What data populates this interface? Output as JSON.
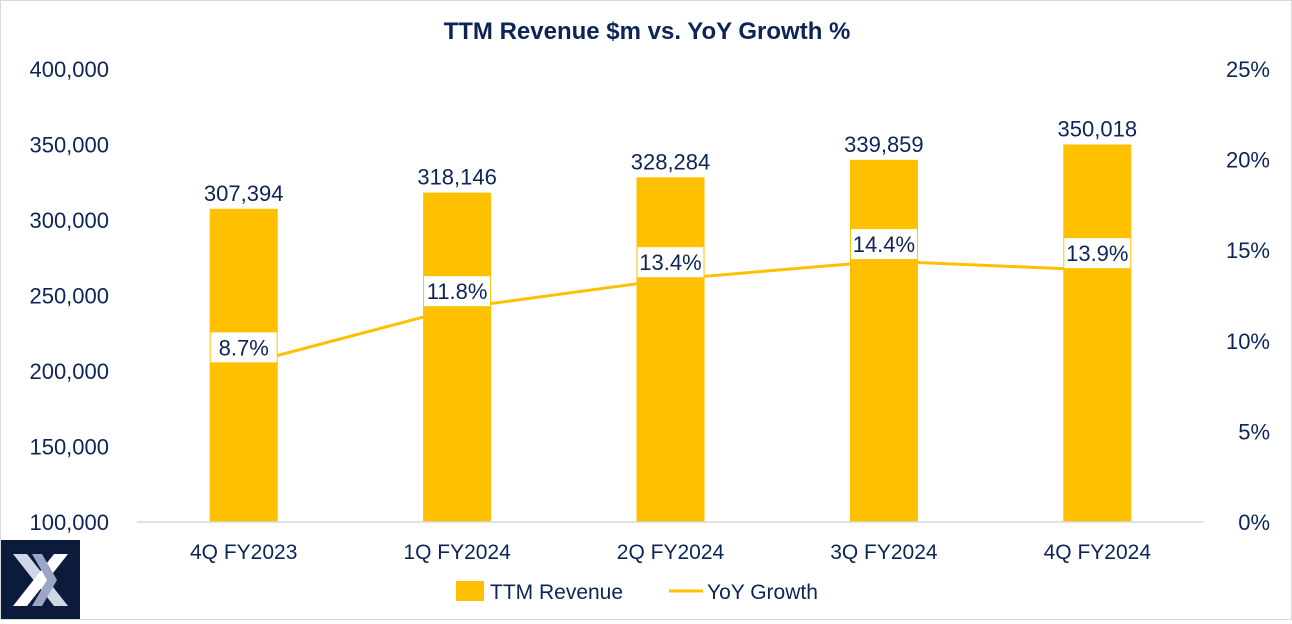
{
  "chart_data": {
    "type": "bar+line",
    "title": "TTM Revenue $m vs. YoY Growth %",
    "categories": [
      "4Q FY2023",
      "1Q FY2024",
      "2Q FY2024",
      "3Q FY2024",
      "4Q FY2024"
    ],
    "series": [
      {
        "name": "TTM Revenue",
        "type": "bar",
        "axis": "left",
        "values": [
          307394,
          318146,
          328284,
          339859,
          350018
        ],
        "labels": [
          "307,394",
          "318,146",
          "328,284",
          "339,859",
          "350,018"
        ]
      },
      {
        "name": "YoY Growth",
        "type": "line",
        "axis": "right",
        "values": [
          8.7,
          11.8,
          13.4,
          14.4,
          13.9
        ],
        "labels": [
          "8.7%",
          "11.8%",
          "13.4%",
          "14.4%",
          "13.9%"
        ]
      }
    ],
    "left_axis": {
      "ylim": [
        100000,
        400000
      ],
      "ticks": [
        100000,
        150000,
        200000,
        250000,
        300000,
        350000,
        400000
      ],
      "tick_labels": [
        "100,000",
        "150,000",
        "200,000",
        "250,000",
        "300,000",
        "350,000",
        "400,000"
      ]
    },
    "right_axis": {
      "ylim": [
        0,
        25
      ],
      "ticks": [
        0,
        5,
        10,
        15,
        20,
        25
      ],
      "tick_labels": [
        "0%",
        "5%",
        "10%",
        "15%",
        "20%",
        "25%"
      ]
    },
    "legend": {
      "position": "bottom",
      "entries": [
        "TTM Revenue",
        "YoY Growth"
      ]
    },
    "colors": {
      "bar": "#ffc000",
      "line": "#ffc000",
      "text": "#0c2556",
      "axis": "#d9d9d9"
    },
    "grid": false
  },
  "logo": {
    "icon": "x-logo-icon"
  }
}
